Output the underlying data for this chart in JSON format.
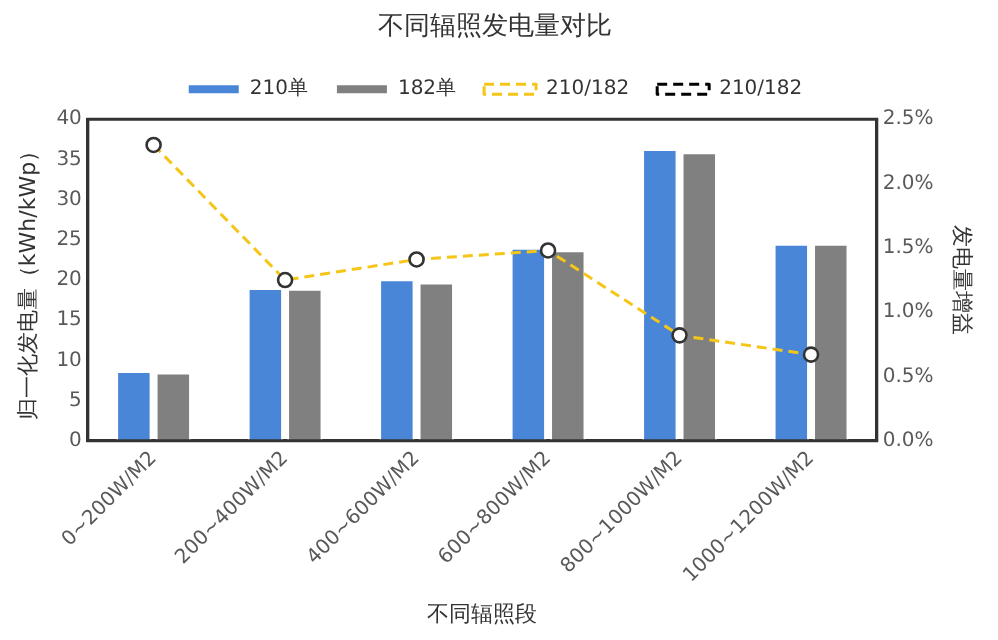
{
  "chart_data": {
    "type": "bar",
    "title": "不同辐照发电量对比",
    "xlabel": "不同辐照段",
    "ylabel": "归一化发电量（kWh/kWp）",
    "y2label": "发电量增益",
    "categories": [
      "0~200W/M2",
      "200~400W/M2",
      "400~600W/M2",
      "600~800W/M2",
      "800~1000W/M2",
      "1000~1200W/M2"
    ],
    "series": [
      {
        "name": "210单",
        "color": "#4a86d8",
        "values": [
          8.7,
          19.0,
          20.1,
          24.0,
          36.3,
          24.5
        ]
      },
      {
        "name": "182单",
        "color": "#808080",
        "values": [
          8.5,
          18.9,
          19.7,
          23.7,
          35.9,
          24.5
        ]
      },
      {
        "name": "210/182",
        "type": "line",
        "axis": "y2",
        "color": "#f5c518",
        "line_style": "dashed",
        "marker": "circle",
        "values": [
          2.3,
          1.25,
          1.41,
          1.48,
          0.82,
          0.67
        ]
      },
      {
        "name": "210/182",
        "type": "line",
        "axis": "y2",
        "color": "#000000",
        "line_style": "dashed",
        "marker": "circle",
        "values": [
          null,
          null,
          null,
          null,
          null,
          null
        ]
      }
    ],
    "ylim": [
      0,
      40
    ],
    "yticks": [
      0,
      5,
      10,
      15,
      20,
      25,
      30,
      35,
      40
    ],
    "y2lim": [
      0,
      2.5
    ],
    "y2ticks": [
      {
        "value": 0,
        "label": "0.0%"
      },
      {
        "value": 0.5,
        "label": "0.5%"
      },
      {
        "value": 1,
        "label": "1.0%"
      },
      {
        "value": 1.5,
        "label": "1.5%"
      },
      {
        "value": 2,
        "label": "2.0%"
      },
      {
        "value": 2.5,
        "label": "2.5%"
      }
    ],
    "grid": false,
    "legend": "top"
  }
}
